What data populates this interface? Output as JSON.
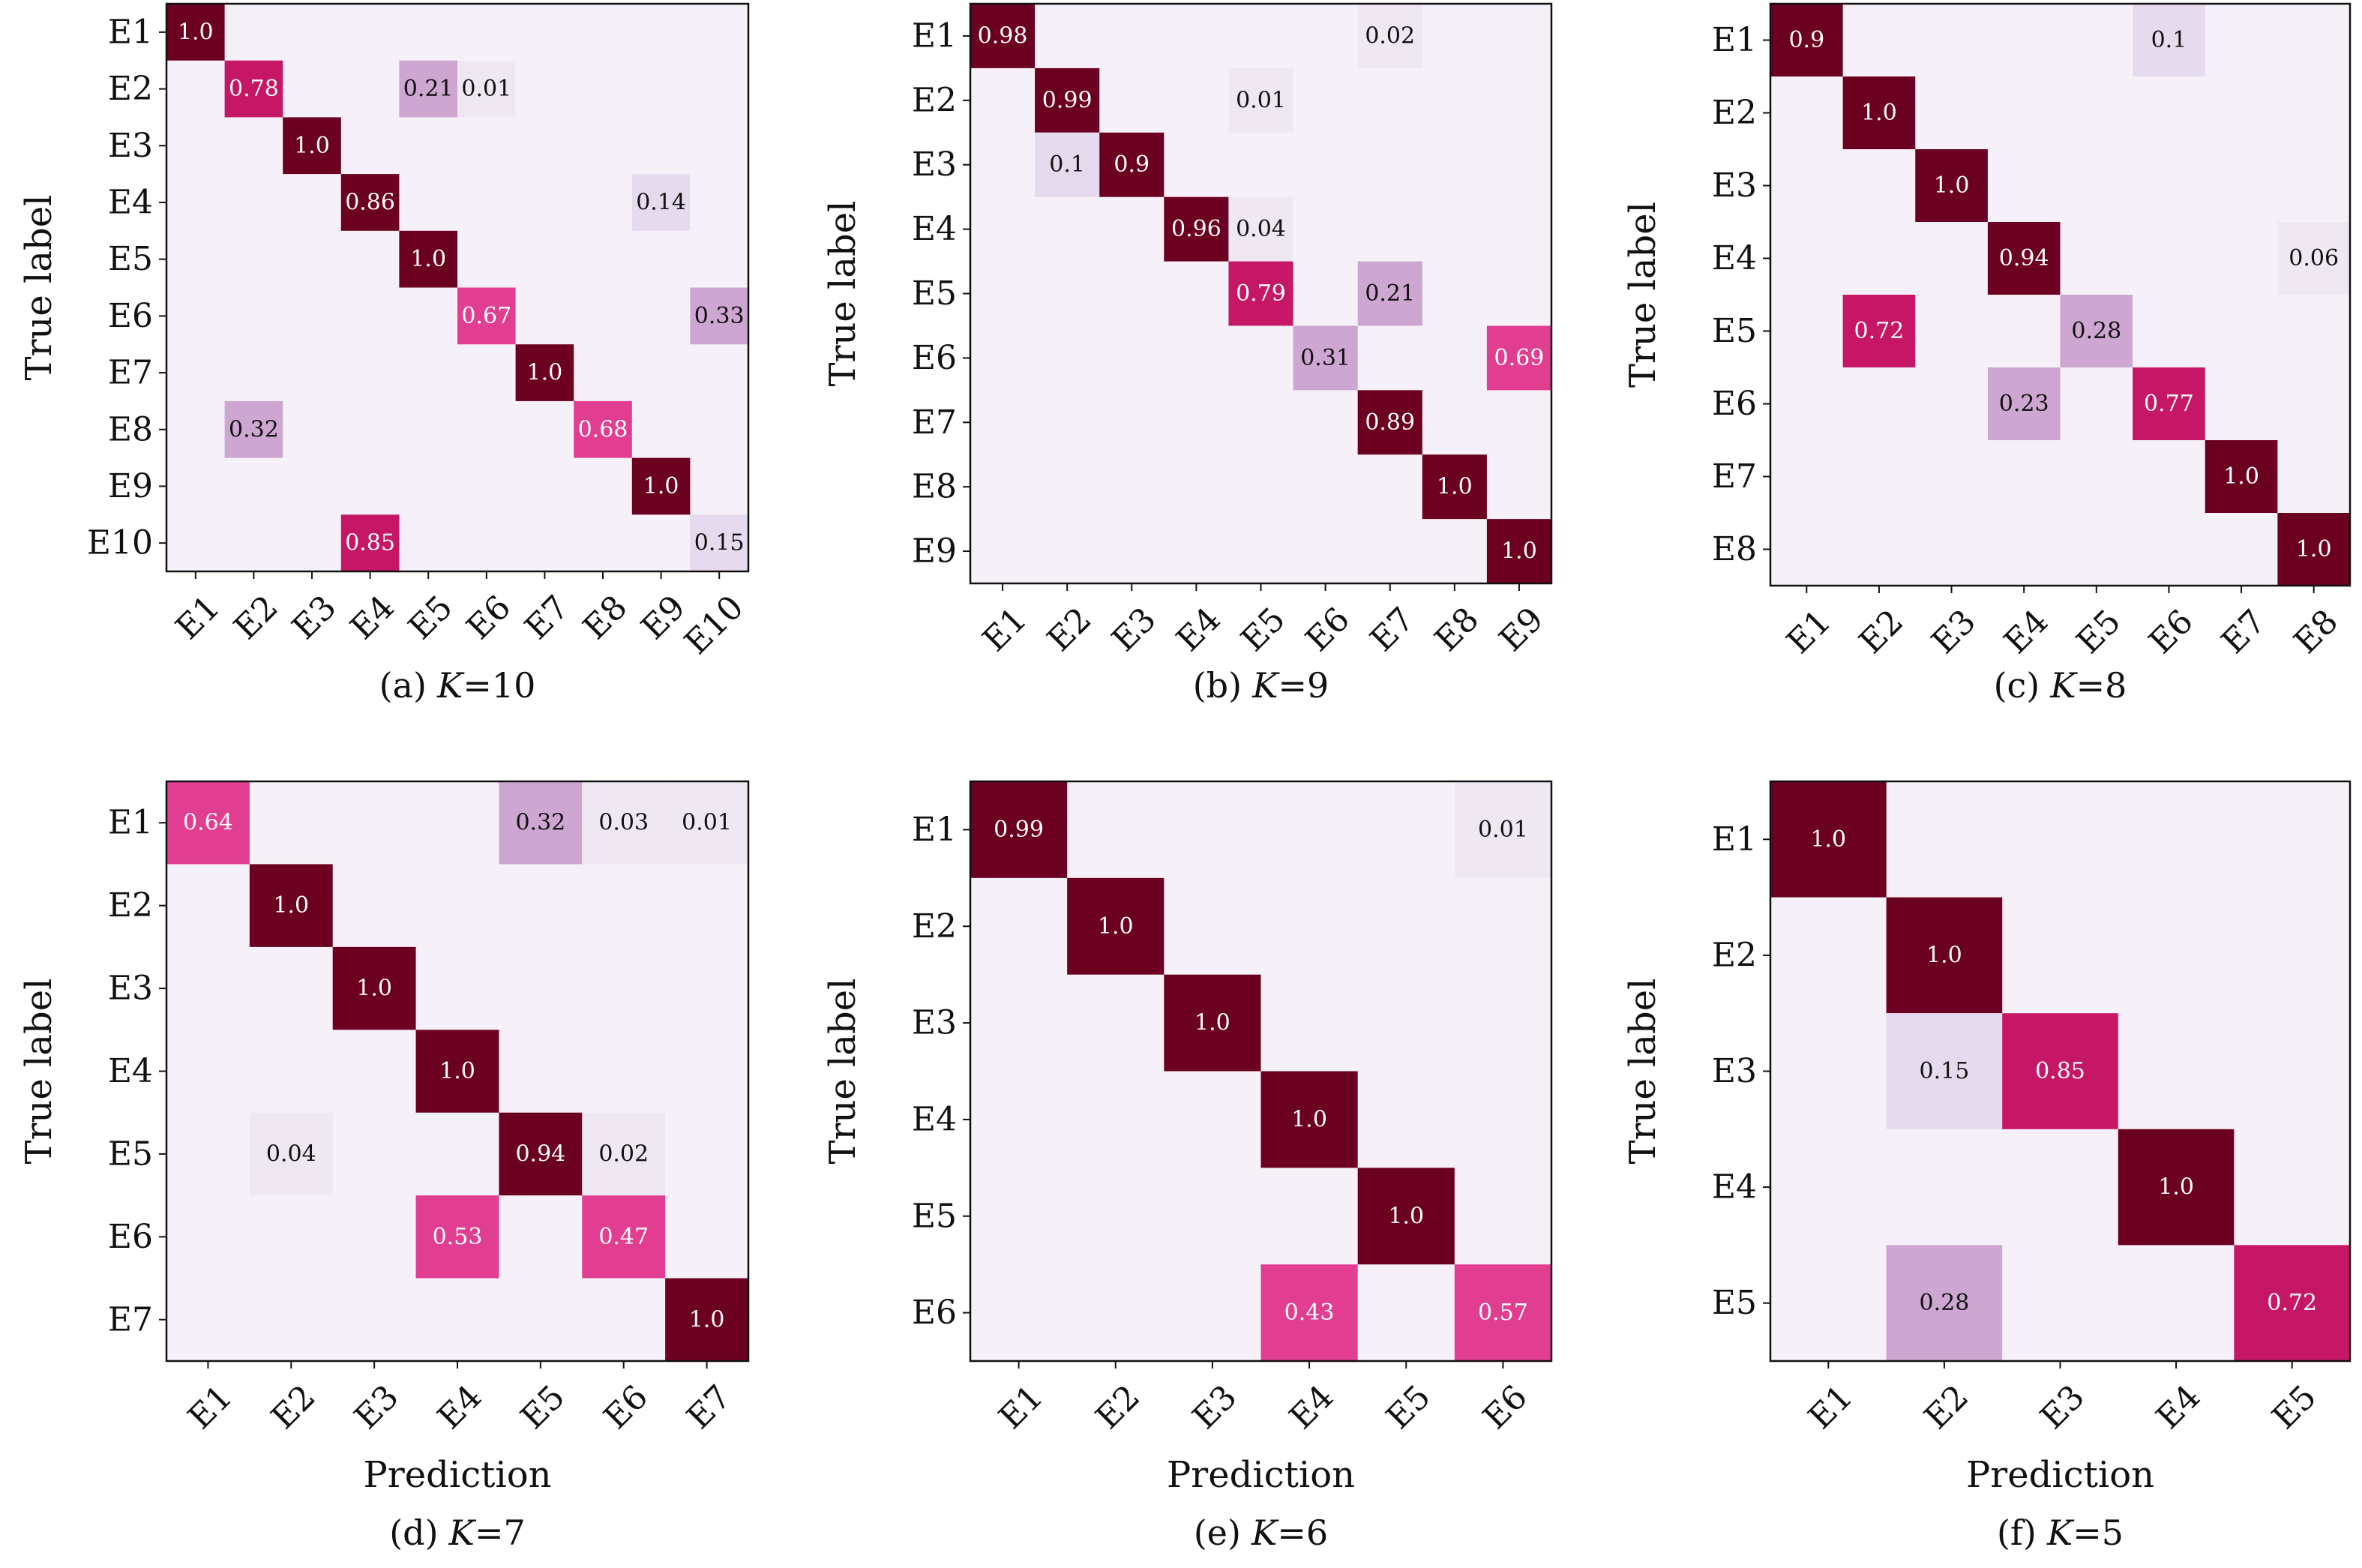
{
  "figure": {
    "colors": {
      "background": "#f6f1f8",
      "light": "#e6dbee",
      "mid": "#cda6d2",
      "pink": "#e23e91",
      "crimson": "#c51765",
      "dark": "#6b0020"
    }
  },
  "chart_data": [
    {
      "type": "heatmap",
      "panel": "(a)",
      "caption_prefix": "(a)",
      "caption_var": "K",
      "caption_eq": "=10",
      "xlabel": "",
      "ylabel": "True label",
      "labels": [
        "E1",
        "E2",
        "E3",
        "E4",
        "E5",
        "E6",
        "E7",
        "E8",
        "E9",
        "E10"
      ],
      "cells": [
        {
          "r": 0,
          "c": 0,
          "v": "1.0"
        },
        {
          "r": 1,
          "c": 1,
          "v": "0.78"
        },
        {
          "r": 1,
          "c": 4,
          "v": "0.21"
        },
        {
          "r": 1,
          "c": 5,
          "v": "0.01"
        },
        {
          "r": 2,
          "c": 2,
          "v": "1.0"
        },
        {
          "r": 3,
          "c": 3,
          "v": "0.86"
        },
        {
          "r": 3,
          "c": 8,
          "v": "0.14"
        },
        {
          "r": 4,
          "c": 4,
          "v": "1.0"
        },
        {
          "r": 5,
          "c": 5,
          "v": "0.67"
        },
        {
          "r": 5,
          "c": 9,
          "v": "0.33"
        },
        {
          "r": 6,
          "c": 6,
          "v": "1.0"
        },
        {
          "r": 7,
          "c": 1,
          "v": "0.32"
        },
        {
          "r": 7,
          "c": 7,
          "v": "0.68"
        },
        {
          "r": 8,
          "c": 8,
          "v": "1.0"
        },
        {
          "r": 9,
          "c": 3,
          "v": "0.85"
        },
        {
          "r": 9,
          "c": 9,
          "v": "0.15"
        }
      ]
    },
    {
      "type": "heatmap",
      "panel": "(b)",
      "caption_prefix": "(b)",
      "caption_var": "K",
      "caption_eq": "=9",
      "xlabel": "",
      "ylabel": "True label",
      "labels": [
        "E1",
        "E2",
        "E3",
        "E4",
        "E5",
        "E6",
        "E7",
        "E8",
        "E9"
      ],
      "cells": [
        {
          "r": 0,
          "c": 0,
          "v": "0.98"
        },
        {
          "r": 0,
          "c": 6,
          "v": "0.02"
        },
        {
          "r": 1,
          "c": 1,
          "v": "0.99"
        },
        {
          "r": 1,
          "c": 4,
          "v": "0.01"
        },
        {
          "r": 2,
          "c": 1,
          "v": "0.1"
        },
        {
          "r": 2,
          "c": 2,
          "v": "0.9"
        },
        {
          "r": 3,
          "c": 3,
          "v": "0.96"
        },
        {
          "r": 3,
          "c": 4,
          "v": "0.04"
        },
        {
          "r": 4,
          "c": 4,
          "v": "0.79"
        },
        {
          "r": 4,
          "c": 6,
          "v": "0.21"
        },
        {
          "r": 5,
          "c": 5,
          "v": "0.31"
        },
        {
          "r": 5,
          "c": 8,
          "v": "0.69"
        },
        {
          "r": 6,
          "c": 6,
          "v": "0.89"
        },
        {
          "r": 7,
          "c": 7,
          "v": "1.0"
        },
        {
          "r": 8,
          "c": 8,
          "v": "1.0"
        }
      ]
    },
    {
      "type": "heatmap",
      "panel": "(c)",
      "caption_prefix": "(c)",
      "caption_var": "K",
      "caption_eq": "=8",
      "xlabel": "",
      "ylabel": "True label",
      "labels": [
        "E1",
        "E2",
        "E3",
        "E4",
        "E5",
        "E6",
        "E7",
        "E8"
      ],
      "cells": [
        {
          "r": 0,
          "c": 0,
          "v": "0.9"
        },
        {
          "r": 0,
          "c": 5,
          "v": "0.1"
        },
        {
          "r": 1,
          "c": 1,
          "v": "1.0"
        },
        {
          "r": 2,
          "c": 2,
          "v": "1.0"
        },
        {
          "r": 3,
          "c": 3,
          "v": "0.94"
        },
        {
          "r": 3,
          "c": 7,
          "v": "0.06"
        },
        {
          "r": 4,
          "c": 1,
          "v": "0.72"
        },
        {
          "r": 4,
          "c": 4,
          "v": "0.28"
        },
        {
          "r": 5,
          "c": 3,
          "v": "0.23"
        },
        {
          "r": 5,
          "c": 5,
          "v": "0.77"
        },
        {
          "r": 6,
          "c": 6,
          "v": "1.0"
        },
        {
          "r": 7,
          "c": 7,
          "v": "1.0"
        }
      ]
    },
    {
      "type": "heatmap",
      "panel": "(d)",
      "caption_prefix": "(d)",
      "caption_var": "K",
      "caption_eq": "=7",
      "xlabel": "Prediction",
      "ylabel": "True label",
      "labels": [
        "E1",
        "E2",
        "E3",
        "E4",
        "E5",
        "E6",
        "E7"
      ],
      "cells": [
        {
          "r": 0,
          "c": 0,
          "v": "0.64"
        },
        {
          "r": 0,
          "c": 4,
          "v": "0.32"
        },
        {
          "r": 0,
          "c": 5,
          "v": "0.03"
        },
        {
          "r": 0,
          "c": 6,
          "v": "0.01"
        },
        {
          "r": 1,
          "c": 1,
          "v": "1.0"
        },
        {
          "r": 2,
          "c": 2,
          "v": "1.0"
        },
        {
          "r": 3,
          "c": 3,
          "v": "1.0"
        },
        {
          "r": 4,
          "c": 1,
          "v": "0.04"
        },
        {
          "r": 4,
          "c": 4,
          "v": "0.94"
        },
        {
          "r": 4,
          "c": 5,
          "v": "0.02"
        },
        {
          "r": 5,
          "c": 3,
          "v": "0.53"
        },
        {
          "r": 5,
          "c": 5,
          "v": "0.47"
        },
        {
          "r": 6,
          "c": 6,
          "v": "1.0"
        }
      ]
    },
    {
      "type": "heatmap",
      "panel": "(e)",
      "caption_prefix": "(e)",
      "caption_var": "K",
      "caption_eq": "=6",
      "xlabel": "Prediction",
      "ylabel": "True label",
      "labels": [
        "E1",
        "E2",
        "E3",
        "E4",
        "E5",
        "E6"
      ],
      "cells": [
        {
          "r": 0,
          "c": 0,
          "v": "0.99"
        },
        {
          "r": 0,
          "c": 5,
          "v": "0.01"
        },
        {
          "r": 1,
          "c": 1,
          "v": "1.0"
        },
        {
          "r": 2,
          "c": 2,
          "v": "1.0"
        },
        {
          "r": 3,
          "c": 3,
          "v": "1.0"
        },
        {
          "r": 4,
          "c": 4,
          "v": "1.0"
        },
        {
          "r": 5,
          "c": 3,
          "v": "0.43"
        },
        {
          "r": 5,
          "c": 5,
          "v": "0.57"
        }
      ]
    },
    {
      "type": "heatmap",
      "panel": "(f)",
      "caption_prefix": "(f)",
      "caption_var": "K",
      "caption_eq": "=5",
      "xlabel": "Prediction",
      "ylabel": "True label",
      "labels": [
        "E1",
        "E2",
        "E3",
        "E4",
        "E5"
      ],
      "cells": [
        {
          "r": 0,
          "c": 0,
          "v": "1.0"
        },
        {
          "r": 1,
          "c": 1,
          "v": "1.0"
        },
        {
          "r": 2,
          "c": 1,
          "v": "0.15"
        },
        {
          "r": 2,
          "c": 2,
          "v": "0.85"
        },
        {
          "r": 3,
          "c": 3,
          "v": "1.0"
        },
        {
          "r": 4,
          "c": 1,
          "v": "0.28"
        },
        {
          "r": 4,
          "c": 4,
          "v": "0.72"
        }
      ]
    }
  ]
}
